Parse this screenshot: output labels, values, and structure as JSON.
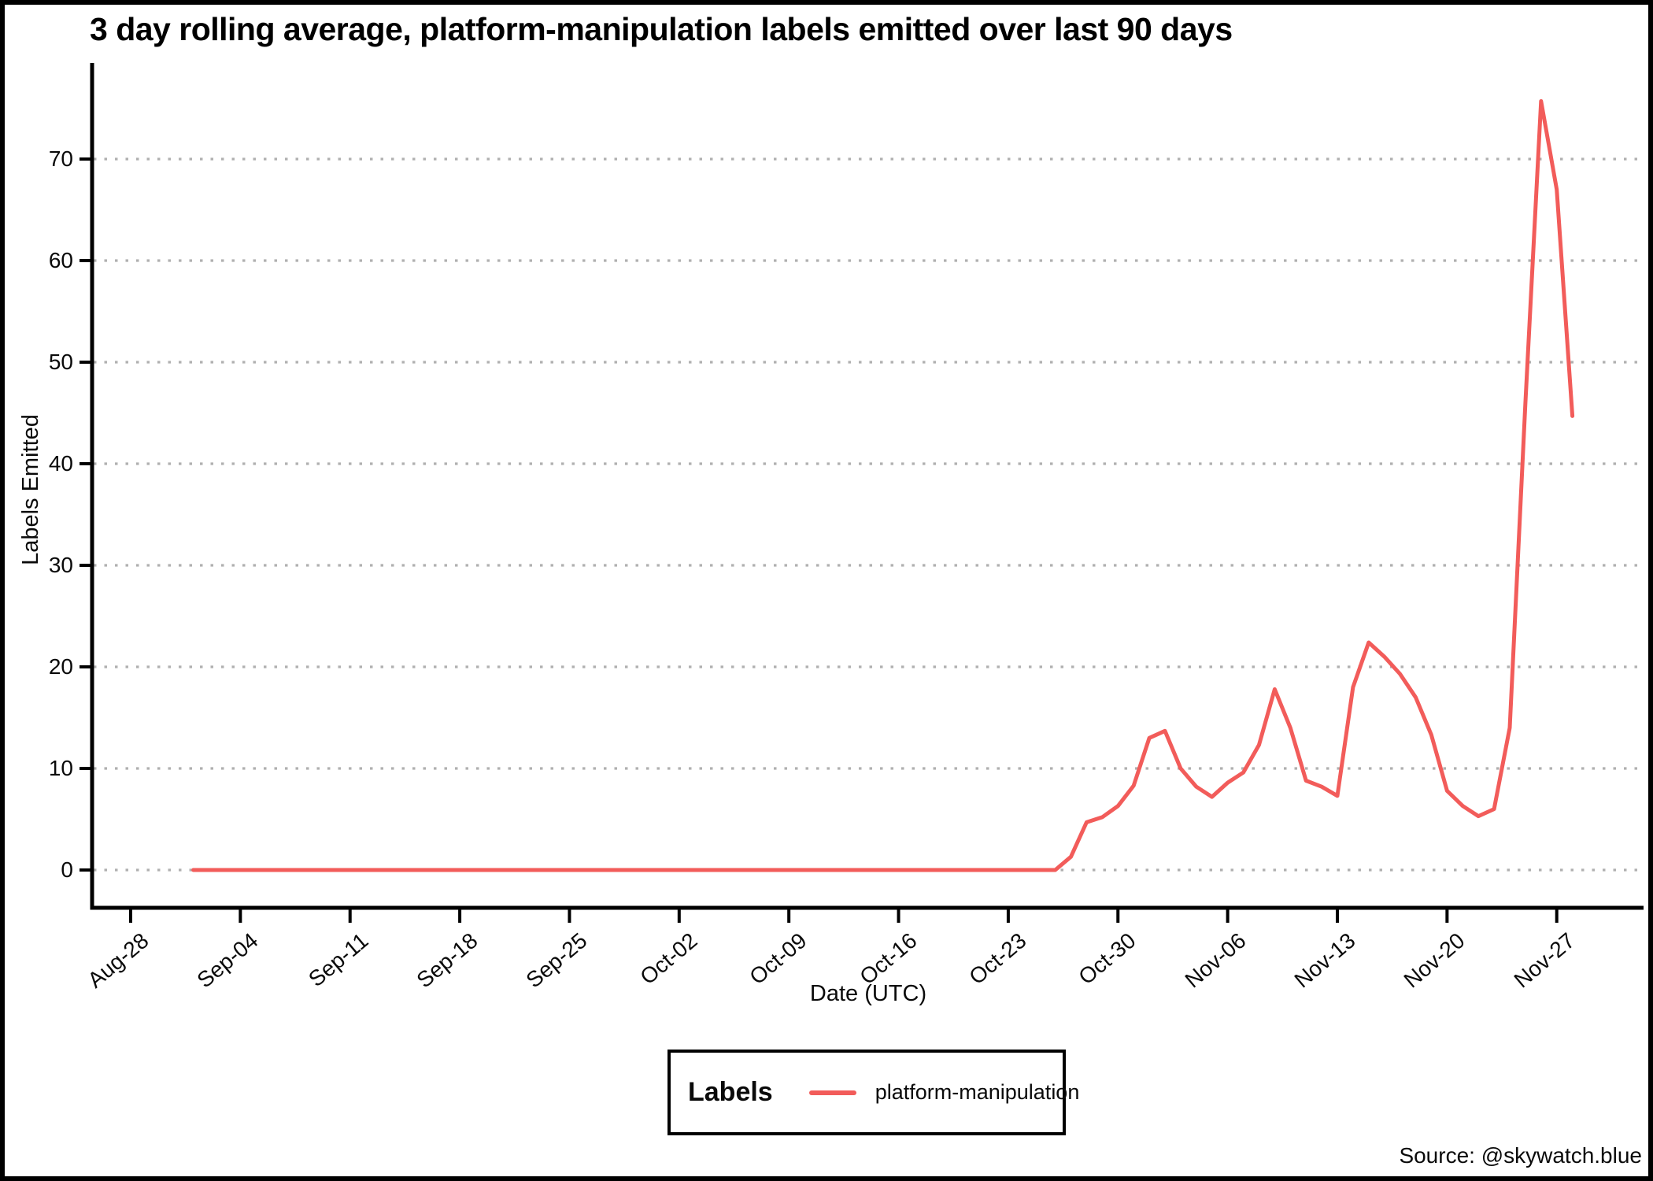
{
  "colors": {
    "series_red": "#f25c5a",
    "gridline_gray": "#b0b0b0",
    "axis_black": "#000000"
  },
  "legend": {
    "title": "Labels",
    "entries": [
      {
        "label": "platform-manipulation",
        "color": "#f25c5a"
      }
    ]
  },
  "source_text": "Source: @skywatch.blue",
  "chart_data": {
    "type": "line",
    "title": "3 day rolling average, platform-manipulation labels emitted over last 90 days",
    "xlabel": "Date (UTC)",
    "ylabel": "Labels Emitted",
    "ylim": [
      0,
      78
    ],
    "grid": "horizontal-dotted",
    "legend_position": "bottom-center",
    "y_ticks": [
      0,
      10,
      20,
      30,
      40,
      50,
      60,
      70
    ],
    "x_ticks": [
      "Aug-28",
      "Sep-04",
      "Sep-11",
      "Sep-18",
      "Sep-25",
      "Oct-02",
      "Oct-09",
      "Oct-16",
      "Oct-23",
      "Oct-30",
      "Nov-06",
      "Nov-13",
      "Nov-20",
      "Nov-27"
    ],
    "series_name": "platform-manipulation",
    "x": [
      "Sep-01",
      "Sep-02",
      "Sep-03",
      "Sep-04",
      "Sep-05",
      "Sep-06",
      "Sep-07",
      "Sep-08",
      "Sep-09",
      "Sep-10",
      "Sep-11",
      "Sep-12",
      "Sep-13",
      "Sep-14",
      "Sep-15",
      "Sep-16",
      "Sep-17",
      "Sep-18",
      "Sep-19",
      "Sep-20",
      "Sep-21",
      "Sep-22",
      "Sep-23",
      "Sep-24",
      "Sep-25",
      "Sep-26",
      "Sep-27",
      "Sep-28",
      "Sep-29",
      "Sep-30",
      "Oct-01",
      "Oct-02",
      "Oct-03",
      "Oct-04",
      "Oct-05",
      "Oct-06",
      "Oct-07",
      "Oct-08",
      "Oct-09",
      "Oct-10",
      "Oct-11",
      "Oct-12",
      "Oct-13",
      "Oct-14",
      "Oct-15",
      "Oct-16",
      "Oct-17",
      "Oct-18",
      "Oct-19",
      "Oct-20",
      "Oct-21",
      "Oct-22",
      "Oct-23",
      "Oct-24",
      "Oct-25",
      "Oct-26",
      "Oct-27",
      "Oct-28",
      "Oct-29",
      "Oct-30",
      "Oct-31",
      "Nov-01",
      "Nov-02",
      "Nov-03",
      "Nov-04",
      "Nov-05",
      "Nov-06",
      "Nov-07",
      "Nov-08",
      "Nov-09",
      "Nov-10",
      "Nov-11",
      "Nov-12",
      "Nov-13",
      "Nov-14",
      "Nov-15",
      "Nov-16",
      "Nov-17",
      "Nov-18",
      "Nov-19",
      "Nov-20",
      "Nov-21",
      "Nov-22",
      "Nov-23",
      "Nov-24",
      "Nov-25",
      "Nov-26",
      "Nov-27",
      "Nov-28"
    ],
    "values": [
      0,
      0,
      0,
      0,
      0,
      0,
      0,
      0,
      0,
      0,
      0,
      0,
      0,
      0,
      0,
      0,
      0,
      0,
      0,
      0,
      0,
      0,
      0,
      0,
      0,
      0,
      0,
      0,
      0,
      0,
      0,
      0,
      0,
      0,
      0,
      0,
      0,
      0,
      0,
      0,
      0,
      0,
      0,
      0,
      0,
      0,
      0,
      0,
      0,
      0,
      0,
      0,
      0,
      0,
      0,
      0,
      1.3,
      4.7,
      5.2,
      6.3,
      8.3,
      13.0,
      13.7,
      10.0,
      8.2,
      7.2,
      8.6,
      9.6,
      12.3,
      17.8,
      14.0,
      8.8,
      8.2,
      7.3,
      18.0,
      22.4,
      21.0,
      19.3,
      17.0,
      13.3,
      7.8,
      6.3,
      5.3,
      6.0,
      14.0,
      46.0,
      75.7,
      67.0,
      44.7
    ]
  }
}
